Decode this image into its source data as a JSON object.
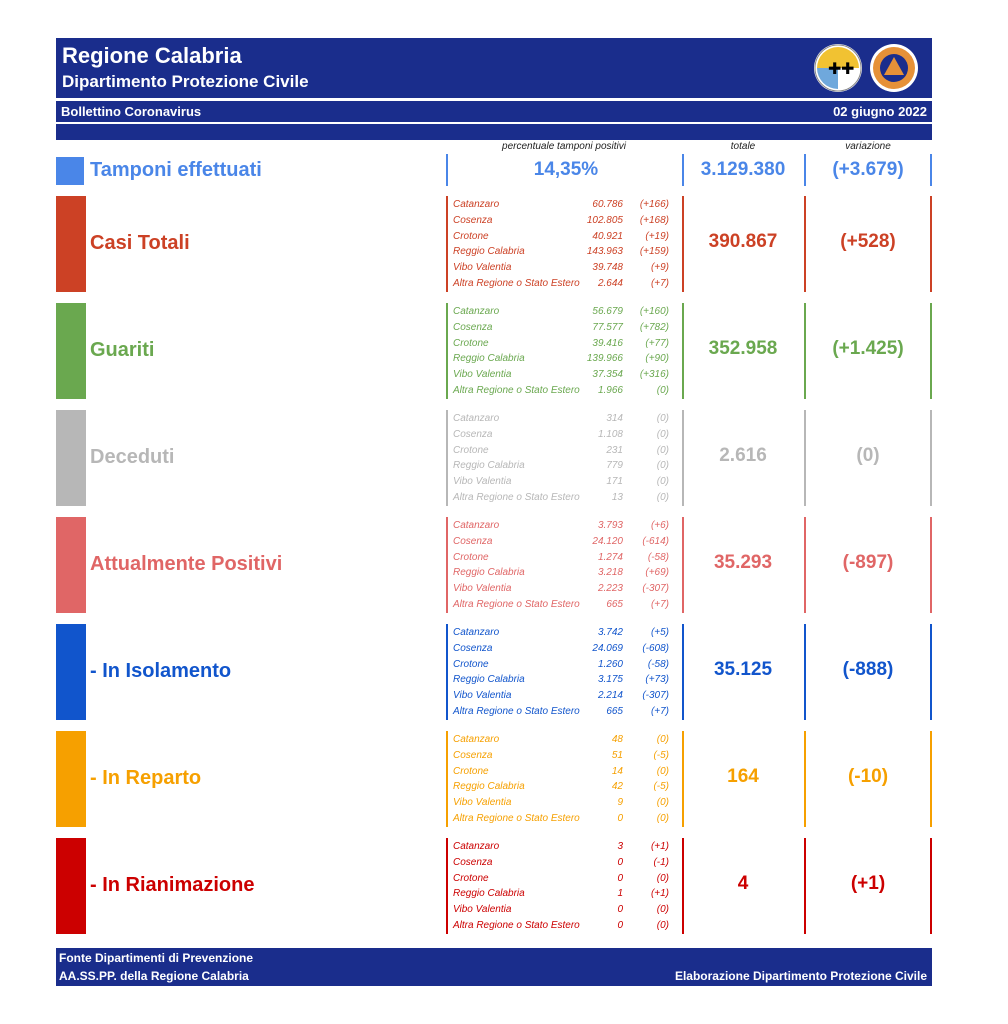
{
  "header": {
    "title": "Regione Calabria",
    "subtitle": "Dipartimento Protezione Civile",
    "bulletin": "Bollettino Coronavirus",
    "date": "02 giugno 2022",
    "logo1_icon": "calabria-crest-icon",
    "logo2_icon": "protezione-civile-logo-icon"
  },
  "columns": {
    "pct": "percentuale tamponi positivi",
    "totale": "totale",
    "variazione": "variazione"
  },
  "tamponi": {
    "label": "Tamponi effettuati",
    "pct": "14,35%",
    "total": "3.129.380",
    "var": "(+3.679)",
    "color": "#4a86e8"
  },
  "sections": [
    {
      "label": "Casi Totali",
      "color": "#cc4125",
      "total": "390.867",
      "var": "(+528)",
      "rows": [
        [
          "Catanzaro",
          "60.786",
          "(+166)"
        ],
        [
          "Cosenza",
          "102.805",
          "(+168)"
        ],
        [
          "Crotone",
          "40.921",
          "(+19)"
        ],
        [
          "Reggio Calabria",
          "143.963",
          "(+159)"
        ],
        [
          "Vibo Valentia",
          "39.748",
          "(+9)"
        ],
        [
          "Altra Regione o Stato Estero",
          "2.644",
          "(+7)"
        ]
      ]
    },
    {
      "label": "Guariti",
      "color": "#6aa84f",
      "total": "352.958",
      "var": "(+1.425)",
      "rows": [
        [
          "Catanzaro",
          "56.679",
          "(+160)"
        ],
        [
          "Cosenza",
          "77.577",
          "(+782)"
        ],
        [
          "Crotone",
          "39.416",
          "(+77)"
        ],
        [
          "Reggio Calabria",
          "139.966",
          "(+90)"
        ],
        [
          "Vibo Valentia",
          "37.354",
          "(+316)"
        ],
        [
          "Altra Regione o Stato Estero",
          "1.966",
          "(0)"
        ]
      ]
    },
    {
      "label": "Deceduti",
      "color": "#b7b7b7",
      "total": "2.616",
      "var": "(0)",
      "rows": [
        [
          "Catanzaro",
          "314",
          "(0)"
        ],
        [
          "Cosenza",
          "1.108",
          "(0)"
        ],
        [
          "Crotone",
          "231",
          "(0)"
        ],
        [
          "Reggio Calabria",
          "779",
          "(0)"
        ],
        [
          "Vibo Valentia",
          "171",
          "(0)"
        ],
        [
          "Altra Regione o Stato Estero",
          "13",
          "(0)"
        ]
      ]
    },
    {
      "label": "Attualmente Positivi",
      "color": "#e06666",
      "total": "35.293",
      "var": "(-897)",
      "rows": [
        [
          "Catanzaro",
          "3.793",
          "(+6)"
        ],
        [
          "Cosenza",
          "24.120",
          "(-614)"
        ],
        [
          "Crotone",
          "1.274",
          "(-58)"
        ],
        [
          "Reggio Calabria",
          "3.218",
          "(+69)"
        ],
        [
          "Vibo Valentia",
          "2.223",
          "(-307)"
        ],
        [
          "Altra Regione o Stato Estero",
          "665",
          "(+7)"
        ]
      ]
    },
    {
      "label": " - In Isolamento",
      "color": "#1155cc",
      "total": "35.125",
      "var": "(-888)",
      "rows": [
        [
          "Catanzaro",
          "3.742",
          "(+5)"
        ],
        [
          "Cosenza",
          "24.069",
          "(-608)"
        ],
        [
          "Crotone",
          "1.260",
          "(-58)"
        ],
        [
          "Reggio Calabria",
          "3.175",
          "(+73)"
        ],
        [
          "Vibo Valentia",
          "2.214",
          "(-307)"
        ],
        [
          "Altra Regione o Stato Estero",
          "665",
          "(+7)"
        ]
      ]
    },
    {
      "label": " - In Reparto",
      "color": "#f6a000",
      "total": "164",
      "var": "(-10)",
      "rows": [
        [
          "Catanzaro",
          "48",
          "(0)"
        ],
        [
          "Cosenza",
          "51",
          "(-5)"
        ],
        [
          "Crotone",
          "14",
          "(0)"
        ],
        [
          "Reggio Calabria",
          "42",
          "(-5)"
        ],
        [
          "Vibo Valentia",
          "9",
          "(0)"
        ],
        [
          "Altra Regione o Stato Estero",
          "0",
          "(0)"
        ]
      ]
    },
    {
      "label": " - In Rianimazione",
      "color": "#cc0000",
      "total": "4",
      "var": "(+1)",
      "rows": [
        [
          "Catanzaro",
          "3",
          "(+1)"
        ],
        [
          "Cosenza",
          "0",
          "(-1)"
        ],
        [
          "Crotone",
          "0",
          "(0)"
        ],
        [
          "Reggio Calabria",
          "1",
          "(+1)"
        ],
        [
          "Vibo Valentia",
          "0",
          "(0)"
        ],
        [
          "Altra Regione o Stato Estero",
          "0",
          "(0)"
        ]
      ]
    }
  ],
  "footer": {
    "line1": "Fonte Dipartimenti di Prevenzione",
    "line2": "AA.SS.PP.  della Regione Calabria",
    "right": "Elaborazione Dipartimento Protezione Civile"
  }
}
